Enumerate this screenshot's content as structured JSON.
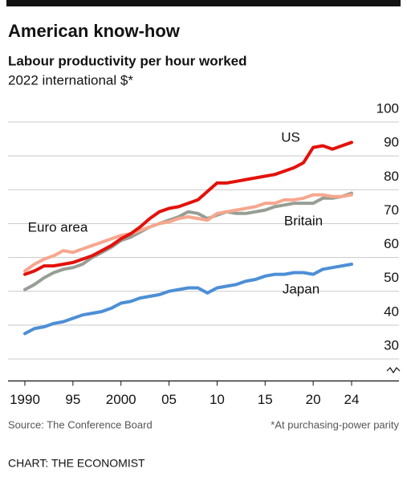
{
  "chart_data": {
    "type": "line",
    "title": "American know-how",
    "subtitle": "Labour productivity per hour worked",
    "unit_note": "2022 international $*",
    "source": "Source: The Conference Board",
    "footnote": "*At purchasing-power parity",
    "credit": "CHART: THE ECONOMIST",
    "x": [
      1990,
      1991,
      1992,
      1993,
      1994,
      1995,
      1996,
      1997,
      1998,
      1999,
      2000,
      2001,
      2002,
      2003,
      2004,
      2005,
      2006,
      2007,
      2008,
      2009,
      2010,
      2011,
      2012,
      2013,
      2014,
      2015,
      2016,
      2017,
      2018,
      2019,
      2020,
      2021,
      2022,
      2023,
      2024
    ],
    "xlim": [
      1990,
      2024
    ],
    "xticks": [
      1990,
      {
        "value": 1995,
        "label": "95"
      },
      2000,
      {
        "value": 2005,
        "label": "05"
      },
      {
        "value": 2010,
        "label": "10"
      },
      {
        "value": 2015,
        "label": "15"
      },
      {
        "value": 2020,
        "label": "20"
      },
      {
        "value": 2024,
        "label": "24"
      }
    ],
    "ylim": [
      23.5,
      100
    ],
    "yticks": [
      30,
      40,
      50,
      60,
      70,
      80,
      90,
      100
    ],
    "grid": true,
    "series": [
      {
        "name": "US",
        "color": "#e3120b",
        "values": [
          55,
          56,
          57.5,
          57.5,
          58,
          58.5,
          59.5,
          60.5,
          62,
          63.5,
          65.5,
          67,
          69,
          71.5,
          73.5,
          74.5,
          75,
          76,
          77,
          79.5,
          82,
          82,
          82.5,
          83,
          83.5,
          84,
          84.5,
          85.5,
          86.5,
          88,
          92.5,
          93,
          92,
          93,
          94
        ]
      },
      {
        "name": "Euro area",
        "color": "#f6a78f",
        "values": [
          56,
          58,
          59.5,
          60.5,
          62,
          61.5,
          62.5,
          63.5,
          64.5,
          65.5,
          66.5,
          67,
          68,
          69,
          70,
          70.5,
          71.5,
          72,
          71.5,
          71,
          73,
          73.5,
          74,
          74.5,
          75,
          76,
          76,
          77,
          77,
          77.5,
          78.5,
          78.5,
          78,
          78,
          78.5
        ]
      },
      {
        "name": "Britain",
        "color": "#979e94",
        "values": [
          50.5,
          52,
          54,
          55.5,
          56.5,
          57,
          58,
          60,
          61.5,
          63,
          65,
          66,
          67.5,
          69,
          70,
          71,
          72,
          73.5,
          73,
          71.5,
          72.5,
          73.5,
          73,
          73,
          73.5,
          74,
          75,
          75.5,
          76,
          76,
          76,
          77.5,
          77.5,
          78,
          79
        ]
      },
      {
        "name": "Japan",
        "color": "#4d8fd6",
        "values": [
          37.5,
          39,
          39.5,
          40.5,
          41,
          42,
          43,
          43.5,
          44,
          45,
          46.5,
          47,
          48,
          48.5,
          49,
          50,
          50.5,
          51,
          51,
          49.5,
          51,
          51.5,
          52,
          53,
          53.5,
          54.5,
          55,
          55,
          55.5,
          55.5,
          55,
          56.5,
          57,
          57.5,
          58
        ]
      }
    ]
  }
}
